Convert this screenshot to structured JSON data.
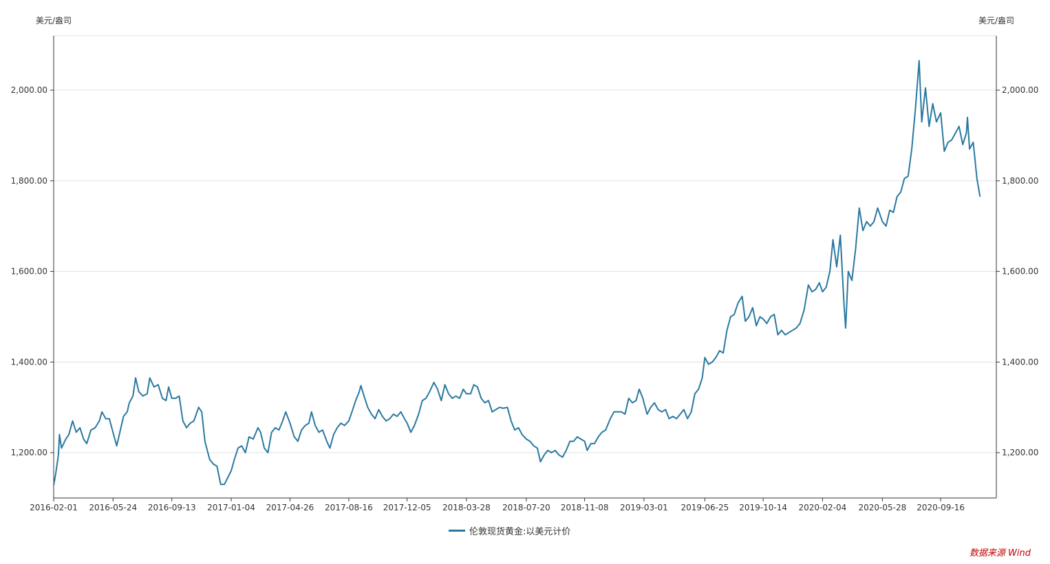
{
  "source_label": "数据来源 Wind",
  "colors": {
    "series": "#2878a0",
    "grid": "#e0e0e0",
    "axis": "#333333"
  },
  "chart_data": {
    "type": "line",
    "title": "",
    "ylabel_left": "美元/盎司",
    "ylabel_right": "美元/盎司",
    "ylim": [
      1100,
      2120
    ],
    "yticks": [
      1200,
      1400,
      1600,
      1800,
      2000
    ],
    "ytick_labels": [
      "1,200.00",
      "1,400.00",
      "1,600.00",
      "1,800.00",
      "2,000.00"
    ],
    "xlim": [
      "2016-02-01",
      "2020-12-31"
    ],
    "xticks": [
      "2016-02-01",
      "2016-05-24",
      "2016-09-13",
      "2017-01-04",
      "2017-04-26",
      "2017-08-16",
      "2017-12-05",
      "2018-03-28",
      "2018-07-20",
      "2018-11-08",
      "2019-03-01",
      "2019-06-25",
      "2019-10-14",
      "2020-02-04",
      "2020-05-28",
      "2020-09-16"
    ],
    "grid": true,
    "legend_position": "bottom-center",
    "series": [
      {
        "name": "伦敦现货黄金:以美元计价",
        "color": "#2878a0",
        "points": [
          [
            "2016-02-01",
            1128
          ],
          [
            "2016-02-05",
            1155
          ],
          [
            "2016-02-10",
            1195
          ],
          [
            "2016-02-12",
            1240
          ],
          [
            "2016-02-16",
            1210
          ],
          [
            "2016-02-24",
            1230
          ],
          [
            "2016-03-01",
            1240
          ],
          [
            "2016-03-08",
            1270
          ],
          [
            "2016-03-15",
            1245
          ],
          [
            "2016-03-22",
            1255
          ],
          [
            "2016-03-29",
            1230
          ],
          [
            "2016-04-04",
            1220
          ],
          [
            "2016-04-12",
            1250
          ],
          [
            "2016-04-20",
            1255
          ],
          [
            "2016-04-28",
            1270
          ],
          [
            "2016-05-03",
            1290
          ],
          [
            "2016-05-10",
            1275
          ],
          [
            "2016-05-17",
            1275
          ],
          [
            "2016-05-24",
            1245
          ],
          [
            "2016-05-31",
            1215
          ],
          [
            "2016-06-06",
            1245
          ],
          [
            "2016-06-13",
            1280
          ],
          [
            "2016-06-20",
            1290
          ],
          [
            "2016-06-24",
            1310
          ],
          [
            "2016-07-01",
            1325
          ],
          [
            "2016-07-06",
            1365
          ],
          [
            "2016-07-12",
            1335
          ],
          [
            "2016-07-20",
            1325
          ],
          [
            "2016-07-28",
            1330
          ],
          [
            "2016-08-02",
            1365
          ],
          [
            "2016-08-10",
            1345
          ],
          [
            "2016-08-18",
            1350
          ],
          [
            "2016-08-26",
            1320
          ],
          [
            "2016-09-02",
            1315
          ],
          [
            "2016-09-07",
            1345
          ],
          [
            "2016-09-13",
            1320
          ],
          [
            "2016-09-20",
            1320
          ],
          [
            "2016-09-27",
            1325
          ],
          [
            "2016-10-04",
            1270
          ],
          [
            "2016-10-11",
            1255
          ],
          [
            "2016-10-18",
            1265
          ],
          [
            "2016-10-25",
            1270
          ],
          [
            "2016-11-03",
            1300
          ],
          [
            "2016-11-09",
            1290
          ],
          [
            "2016-11-15",
            1225
          ],
          [
            "2016-11-24",
            1185
          ],
          [
            "2016-12-01",
            1175
          ],
          [
            "2016-12-08",
            1170
          ],
          [
            "2016-12-15",
            1130
          ],
          [
            "2016-12-22",
            1130
          ],
          [
            "2017-01-04",
            1160
          ],
          [
            "2017-01-10",
            1185
          ],
          [
            "2017-01-17",
            1210
          ],
          [
            "2017-01-24",
            1215
          ],
          [
            "2017-01-31",
            1200
          ],
          [
            "2017-02-07",
            1235
          ],
          [
            "2017-02-15",
            1230
          ],
          [
            "2017-02-24",
            1255
          ],
          [
            "2017-03-01",
            1245
          ],
          [
            "2017-03-08",
            1210
          ],
          [
            "2017-03-15",
            1200
          ],
          [
            "2017-03-22",
            1245
          ],
          [
            "2017-03-29",
            1255
          ],
          [
            "2017-04-05",
            1250
          ],
          [
            "2017-04-12",
            1270
          ],
          [
            "2017-04-18",
            1290
          ],
          [
            "2017-04-26",
            1265
          ],
          [
            "2017-05-04",
            1235
          ],
          [
            "2017-05-11",
            1225
          ],
          [
            "2017-05-18",
            1250
          ],
          [
            "2017-05-25",
            1260
          ],
          [
            "2017-06-01",
            1265
          ],
          [
            "2017-06-06",
            1290
          ],
          [
            "2017-06-13",
            1260
          ],
          [
            "2017-06-20",
            1245
          ],
          [
            "2017-06-27",
            1250
          ],
          [
            "2017-07-05",
            1225
          ],
          [
            "2017-07-11",
            1210
          ],
          [
            "2017-07-18",
            1240
          ],
          [
            "2017-07-25",
            1255
          ],
          [
            "2017-08-01",
            1265
          ],
          [
            "2017-08-08",
            1260
          ],
          [
            "2017-08-16",
            1270
          ],
          [
            "2017-08-22",
            1290
          ],
          [
            "2017-08-29",
            1315
          ],
          [
            "2017-09-05",
            1335
          ],
          [
            "2017-09-08",
            1348
          ],
          [
            "2017-09-14",
            1325
          ],
          [
            "2017-09-21",
            1300
          ],
          [
            "2017-09-28",
            1285
          ],
          [
            "2017-10-05",
            1275
          ],
          [
            "2017-10-12",
            1295
          ],
          [
            "2017-10-19",
            1280
          ],
          [
            "2017-10-26",
            1270
          ],
          [
            "2017-11-02",
            1275
          ],
          [
            "2017-11-09",
            1285
          ],
          [
            "2017-11-16",
            1280
          ],
          [
            "2017-11-23",
            1290
          ],
          [
            "2017-11-30",
            1275
          ],
          [
            "2017-12-05",
            1265
          ],
          [
            "2017-12-12",
            1245
          ],
          [
            "2017-12-19",
            1260
          ],
          [
            "2017-12-27",
            1285
          ],
          [
            "2018-01-03",
            1315
          ],
          [
            "2018-01-10",
            1320
          ],
          [
            "2018-01-17",
            1335
          ],
          [
            "2018-01-25",
            1355
          ],
          [
            "2018-02-01",
            1340
          ],
          [
            "2018-02-08",
            1315
          ],
          [
            "2018-02-15",
            1350
          ],
          [
            "2018-02-22",
            1330
          ],
          [
            "2018-03-01",
            1320
          ],
          [
            "2018-03-08",
            1325
          ],
          [
            "2018-03-15",
            1320
          ],
          [
            "2018-03-22",
            1340
          ],
          [
            "2018-03-28",
            1330
          ],
          [
            "2018-04-05",
            1330
          ],
          [
            "2018-04-11",
            1350
          ],
          [
            "2018-04-18",
            1345
          ],
          [
            "2018-04-25",
            1320
          ],
          [
            "2018-05-02",
            1310
          ],
          [
            "2018-05-09",
            1315
          ],
          [
            "2018-05-16",
            1290
          ],
          [
            "2018-05-23",
            1295
          ],
          [
            "2018-05-30",
            1300
          ],
          [
            "2018-06-06",
            1298
          ],
          [
            "2018-06-14",
            1300
          ],
          [
            "2018-06-21",
            1270
          ],
          [
            "2018-06-28",
            1250
          ],
          [
            "2018-07-05",
            1255
          ],
          [
            "2018-07-12",
            1240
          ],
          [
            "2018-07-20",
            1230
          ],
          [
            "2018-07-27",
            1225
          ],
          [
            "2018-08-03",
            1215
          ],
          [
            "2018-08-10",
            1210
          ],
          [
            "2018-08-16",
            1180
          ],
          [
            "2018-08-23",
            1195
          ],
          [
            "2018-08-30",
            1205
          ],
          [
            "2018-09-06",
            1200
          ],
          [
            "2018-09-13",
            1205
          ],
          [
            "2018-09-20",
            1195
          ],
          [
            "2018-09-27",
            1190
          ],
          [
            "2018-10-04",
            1205
          ],
          [
            "2018-10-11",
            1225
          ],
          [
            "2018-10-18",
            1225
          ],
          [
            "2018-10-25",
            1235
          ],
          [
            "2018-11-01",
            1230
          ],
          [
            "2018-11-08",
            1225
          ],
          [
            "2018-11-13",
            1205
          ],
          [
            "2018-11-20",
            1220
          ],
          [
            "2018-11-27",
            1220
          ],
          [
            "2018-12-04",
            1235
          ],
          [
            "2018-12-11",
            1245
          ],
          [
            "2018-12-18",
            1250
          ],
          [
            "2018-12-27",
            1275
          ],
          [
            "2019-01-03",
            1290
          ],
          [
            "2019-01-10",
            1290
          ],
          [
            "2019-01-17",
            1290
          ],
          [
            "2019-01-24",
            1285
          ],
          [
            "2019-01-31",
            1320
          ],
          [
            "2019-02-07",
            1310
          ],
          [
            "2019-02-14",
            1315
          ],
          [
            "2019-02-20",
            1340
          ],
          [
            "2019-02-27",
            1320
          ],
          [
            "2019-03-01",
            1310
          ],
          [
            "2019-03-07",
            1285
          ],
          [
            "2019-03-14",
            1300
          ],
          [
            "2019-03-21",
            1310
          ],
          [
            "2019-03-28",
            1295
          ],
          [
            "2019-04-04",
            1290
          ],
          [
            "2019-04-11",
            1295
          ],
          [
            "2019-04-18",
            1275
          ],
          [
            "2019-04-25",
            1280
          ],
          [
            "2019-05-02",
            1275
          ],
          [
            "2019-05-09",
            1285
          ],
          [
            "2019-05-16",
            1295
          ],
          [
            "2019-05-23",
            1275
          ],
          [
            "2019-05-30",
            1290
          ],
          [
            "2019-06-06",
            1330
          ],
          [
            "2019-06-13",
            1340
          ],
          [
            "2019-06-20",
            1365
          ],
          [
            "2019-06-25",
            1410
          ],
          [
            "2019-07-02",
            1395
          ],
          [
            "2019-07-09",
            1400
          ],
          [
            "2019-07-16",
            1410
          ],
          [
            "2019-07-23",
            1425
          ],
          [
            "2019-07-30",
            1420
          ],
          [
            "2019-08-06",
            1470
          ],
          [
            "2019-08-13",
            1500
          ],
          [
            "2019-08-20",
            1505
          ],
          [
            "2019-08-27",
            1530
          ],
          [
            "2019-09-04",
            1545
          ],
          [
            "2019-09-10",
            1490
          ],
          [
            "2019-09-17",
            1500
          ],
          [
            "2019-09-24",
            1520
          ],
          [
            "2019-10-01",
            1480
          ],
          [
            "2019-10-08",
            1500
          ],
          [
            "2019-10-14",
            1495
          ],
          [
            "2019-10-21",
            1485
          ],
          [
            "2019-10-28",
            1500
          ],
          [
            "2019-11-04",
            1505
          ],
          [
            "2019-11-11",
            1460
          ],
          [
            "2019-11-18",
            1470
          ],
          [
            "2019-11-25",
            1460
          ],
          [
            "2019-12-02",
            1465
          ],
          [
            "2019-12-09",
            1470
          ],
          [
            "2019-12-16",
            1475
          ],
          [
            "2019-12-23",
            1485
          ],
          [
            "2019-12-31",
            1515
          ],
          [
            "2020-01-08",
            1570
          ],
          [
            "2020-01-15",
            1555
          ],
          [
            "2020-01-22",
            1560
          ],
          [
            "2020-01-29",
            1575
          ],
          [
            "2020-02-04",
            1555
          ],
          [
            "2020-02-11",
            1565
          ],
          [
            "2020-02-18",
            1600
          ],
          [
            "2020-02-24",
            1670
          ],
          [
            "2020-03-02",
            1610
          ],
          [
            "2020-03-09",
            1680
          ],
          [
            "2020-03-16",
            1525
          ],
          [
            "2020-03-19",
            1475
          ],
          [
            "2020-03-24",
            1600
          ],
          [
            "2020-03-31",
            1580
          ],
          [
            "2020-04-07",
            1650
          ],
          [
            "2020-04-14",
            1740
          ],
          [
            "2020-04-21",
            1690
          ],
          [
            "2020-04-28",
            1710
          ],
          [
            "2020-05-05",
            1700
          ],
          [
            "2020-05-12",
            1710
          ],
          [
            "2020-05-19",
            1740
          ],
          [
            "2020-05-28",
            1710
          ],
          [
            "2020-06-04",
            1700
          ],
          [
            "2020-06-11",
            1735
          ],
          [
            "2020-06-18",
            1730
          ],
          [
            "2020-06-25",
            1765
          ],
          [
            "2020-07-02",
            1775
          ],
          [
            "2020-07-09",
            1805
          ],
          [
            "2020-07-16",
            1810
          ],
          [
            "2020-07-23",
            1870
          ],
          [
            "2020-07-30",
            1960
          ],
          [
            "2020-08-06",
            2065
          ],
          [
            "2020-08-11",
            1930
          ],
          [
            "2020-08-18",
            2005
          ],
          [
            "2020-08-25",
            1920
          ],
          [
            "2020-09-01",
            1970
          ],
          [
            "2020-09-08",
            1930
          ],
          [
            "2020-09-16",
            1950
          ],
          [
            "2020-09-23",
            1865
          ],
          [
            "2020-09-30",
            1885
          ],
          [
            "2020-10-07",
            1890
          ],
          [
            "2020-10-14",
            1905
          ],
          [
            "2020-10-21",
            1920
          ],
          [
            "2020-10-28",
            1880
          ],
          [
            "2020-11-04",
            1905
          ],
          [
            "2020-11-06",
            1940
          ],
          [
            "2020-11-10",
            1870
          ],
          [
            "2020-11-17",
            1885
          ],
          [
            "2020-11-24",
            1805
          ],
          [
            "2020-11-30",
            1765
          ]
        ]
      }
    ]
  }
}
